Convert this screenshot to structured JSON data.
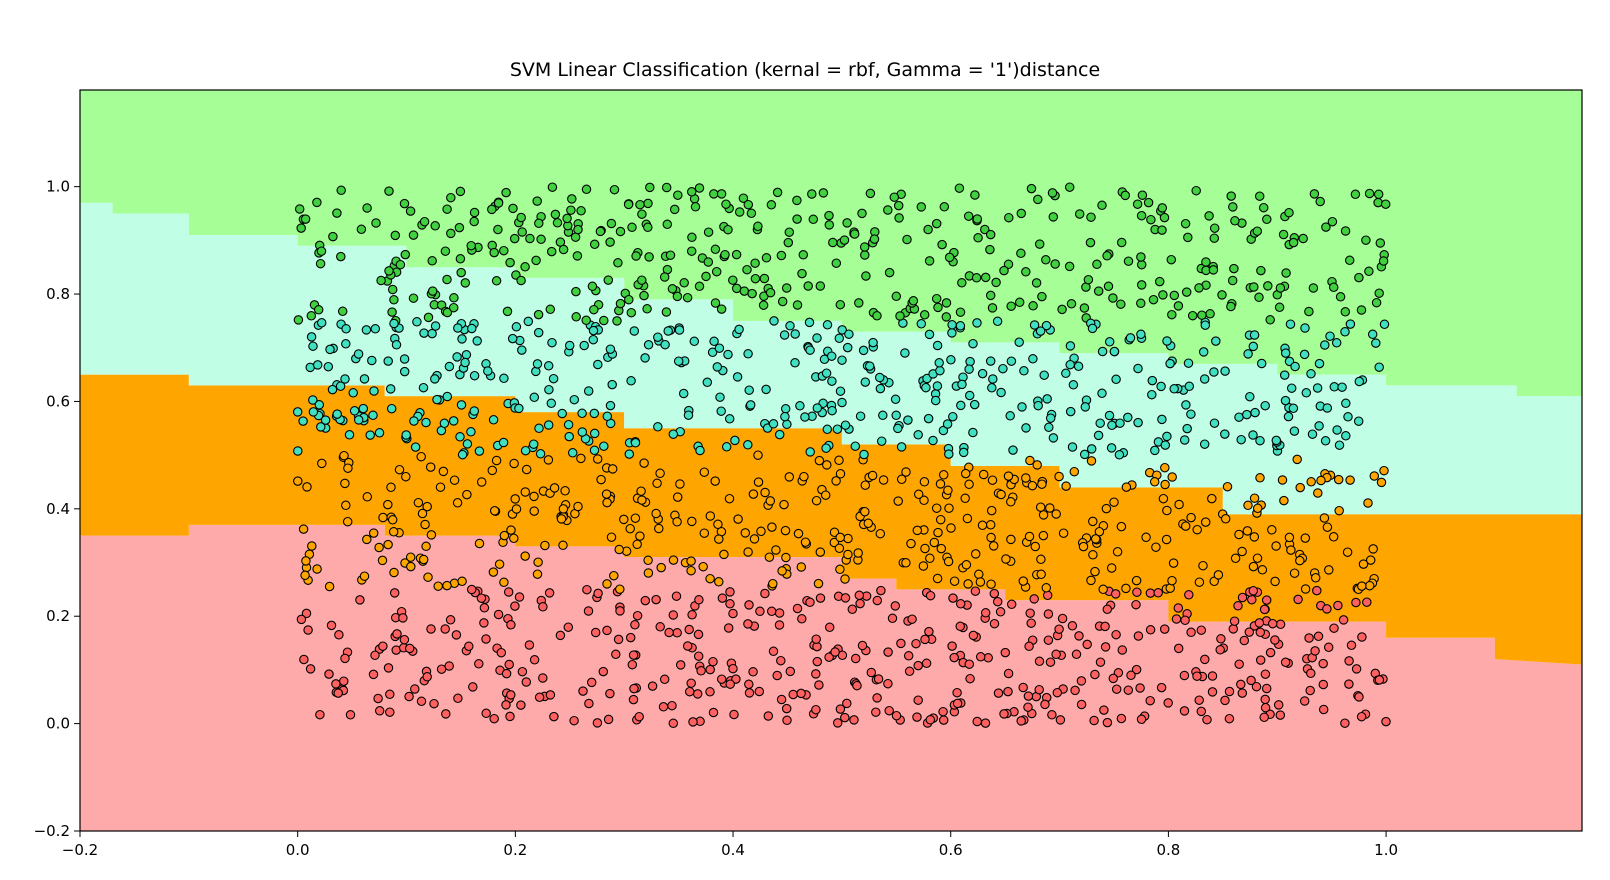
{
  "chart_data": {
    "type": "scatter",
    "title": "SVM Linear Classification (kernal = rbf, Gamma = '1')distance",
    "xlabel": "",
    "ylabel": "",
    "xlim": [
      -0.2,
      1.18
    ],
    "ylim": [
      -0.2,
      1.18
    ],
    "xticks": [
      -0.2,
      0.0,
      0.2,
      0.4,
      0.6,
      0.8,
      1.0
    ],
    "yticks": [
      -0.2,
      0.0,
      0.2,
      0.4,
      0.6,
      0.8,
      1.0
    ],
    "xtick_labels": [
      "−0.2",
      "0.0",
      "0.2",
      "0.4",
      "0.6",
      "0.8",
      "1.0"
    ],
    "ytick_labels": [
      "−0.2",
      "0.0",
      "0.2",
      "0.4",
      "0.6",
      "0.8",
      "1.0"
    ],
    "grid": false,
    "region_colors": [
      "#ffaaaa",
      "#ffa500",
      "#c0ffe6",
      "#a6ff96"
    ],
    "point_colors": [
      "#ff6060",
      "#ffa500",
      "#40e0c0",
      "#40d040"
    ],
    "boundaries": [
      {
        "x": [
          -0.2,
          -0.1,
          -0.1,
          0.08,
          0.08,
          0.2,
          0.2,
          0.3,
          0.3,
          0.5,
          0.5,
          0.55,
          0.55,
          0.65,
          0.65,
          0.8,
          0.8,
          1.0,
          1.0,
          1.1,
          1.1,
          1.18
        ],
        "y": [
          0.35,
          0.35,
          0.37,
          0.37,
          0.35,
          0.35,
          0.33,
          0.33,
          0.31,
          0.31,
          0.27,
          0.27,
          0.25,
          0.25,
          0.23,
          0.23,
          0.19,
          0.19,
          0.16,
          0.16,
          0.12,
          0.11
        ]
      },
      {
        "x": [
          -0.2,
          -0.1,
          -0.1,
          0.08,
          0.08,
          0.2,
          0.2,
          0.3,
          0.3,
          0.5,
          0.5,
          0.6,
          0.6,
          0.7,
          0.7,
          0.85,
          0.85,
          1.18
        ],
        "y": [
          0.65,
          0.65,
          0.63,
          0.63,
          0.61,
          0.61,
          0.58,
          0.58,
          0.55,
          0.55,
          0.52,
          0.52,
          0.48,
          0.48,
          0.44,
          0.44,
          0.39,
          0.39
        ]
      },
      {
        "x": [
          -0.2,
          -0.17,
          -0.17,
          -0.1,
          -0.1,
          0.0,
          0.0,
          0.1,
          0.1,
          0.2,
          0.2,
          0.3,
          0.3,
          0.4,
          0.4,
          0.5,
          0.5,
          0.6,
          0.6,
          0.7,
          0.7,
          0.8,
          0.8,
          0.9,
          0.9,
          1.0,
          1.0,
          1.12,
          1.12,
          1.18
        ],
        "y": [
          0.97,
          0.97,
          0.95,
          0.95,
          0.91,
          0.91,
          0.89,
          0.89,
          0.85,
          0.85,
          0.83,
          0.83,
          0.79,
          0.79,
          0.75,
          0.75,
          0.73,
          0.73,
          0.71,
          0.71,
          0.69,
          0.69,
          0.67,
          0.67,
          0.65,
          0.65,
          0.63,
          0.63,
          0.61,
          0.61
        ]
      }
    ],
    "points": {
      "n": 1800,
      "x_range": [
        0.0,
        1.0
      ],
      "y_range": [
        0.0,
        1.0
      ],
      "classes": [
        "0–0.25",
        "0.25–0.5",
        "0.5–0.75",
        "0.75–1.0"
      ]
    }
  }
}
